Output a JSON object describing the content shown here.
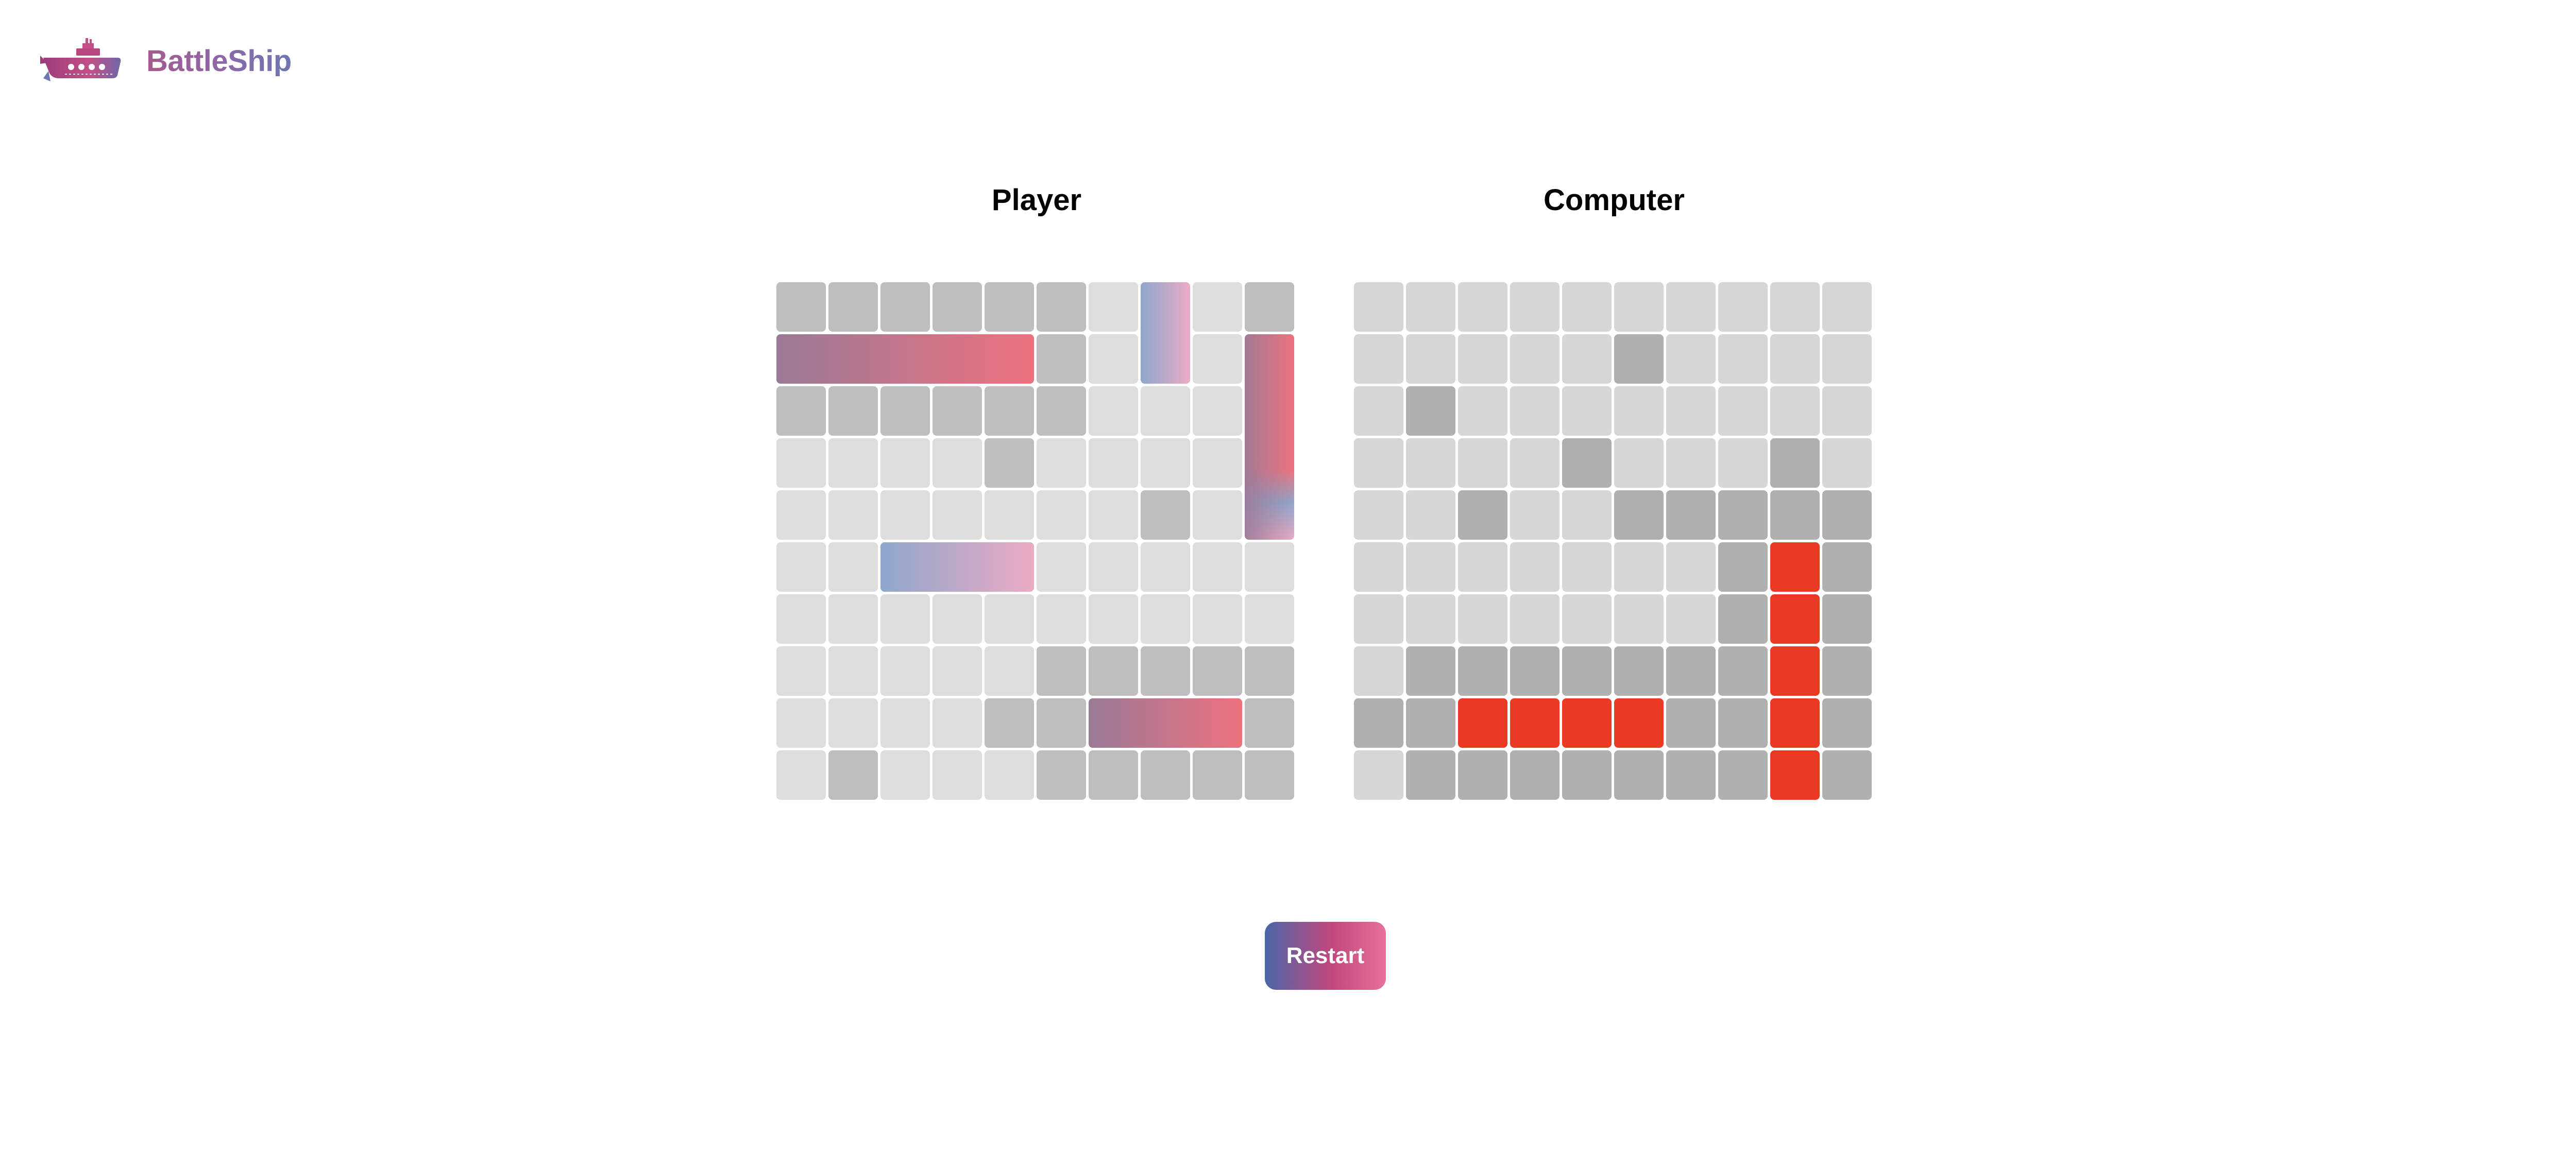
{
  "header": {
    "brand": "BattleShip",
    "logo_icon": "battleship-logo-icon"
  },
  "boards": {
    "player": {
      "title": "Player",
      "cells": [
        "MMMMMMEEEM",
        "MMMMMMEEEM",
        "MMMMMMEEEM",
        "EEEEMEEEEM",
        "EEEEEEEMEM",
        "EEEEEEEEEE",
        "EEEEEEEEEE",
        "EEEEEMMMMM",
        "EEEEMMMMMM",
        "EMEEEMMMMM"
      ],
      "ships": [
        {
          "name": "ship-five",
          "row": 1,
          "col": 0,
          "length": 5,
          "orientation": "horizontal",
          "status": "hit"
        },
        {
          "name": "ship-four",
          "row": 1,
          "col": 9,
          "length": 4,
          "orientation": "vertical",
          "status": "partially-hit"
        },
        {
          "name": "ship-two",
          "row": 0,
          "col": 7,
          "length": 2,
          "orientation": "vertical",
          "status": "intact"
        },
        {
          "name": "ship-three-intact",
          "row": 5,
          "col": 2,
          "length": 3,
          "orientation": "horizontal",
          "status": "intact"
        },
        {
          "name": "ship-three-hit",
          "row": 8,
          "col": 6,
          "length": 3,
          "orientation": "horizontal",
          "status": "hit"
        }
      ]
    },
    "computer": {
      "title": "Computer",
      "cells": [
        "EEEEEEEEEE",
        "EEEEEMEEEE",
        "EMEEEEEEEE",
        "EEEEMEEEME",
        "EEMEEMMMMM",
        "EEEEEEEMHM",
        "EEEEEEEMHM",
        "EMMMMMMMHM",
        "MMHHHHMMHM",
        "EMMMMMMMHM"
      ]
    }
  },
  "legend_codes": {
    "E": "empty",
    "M": "miss",
    "H": "hit"
  },
  "colors": {
    "player_empty": "#dddddd",
    "player_miss": "#bebebe",
    "computer_empty": "#d6d6d6",
    "computer_miss": "#b0b0b0",
    "computer_hit": "#ea3a24",
    "ship_hit_gradient": [
      "#9a7a97",
      "#ee727e"
    ],
    "ship_intact_gradient": [
      "#8fa7cc",
      "#ebabc4"
    ]
  },
  "restart": {
    "label": "Restart"
  }
}
